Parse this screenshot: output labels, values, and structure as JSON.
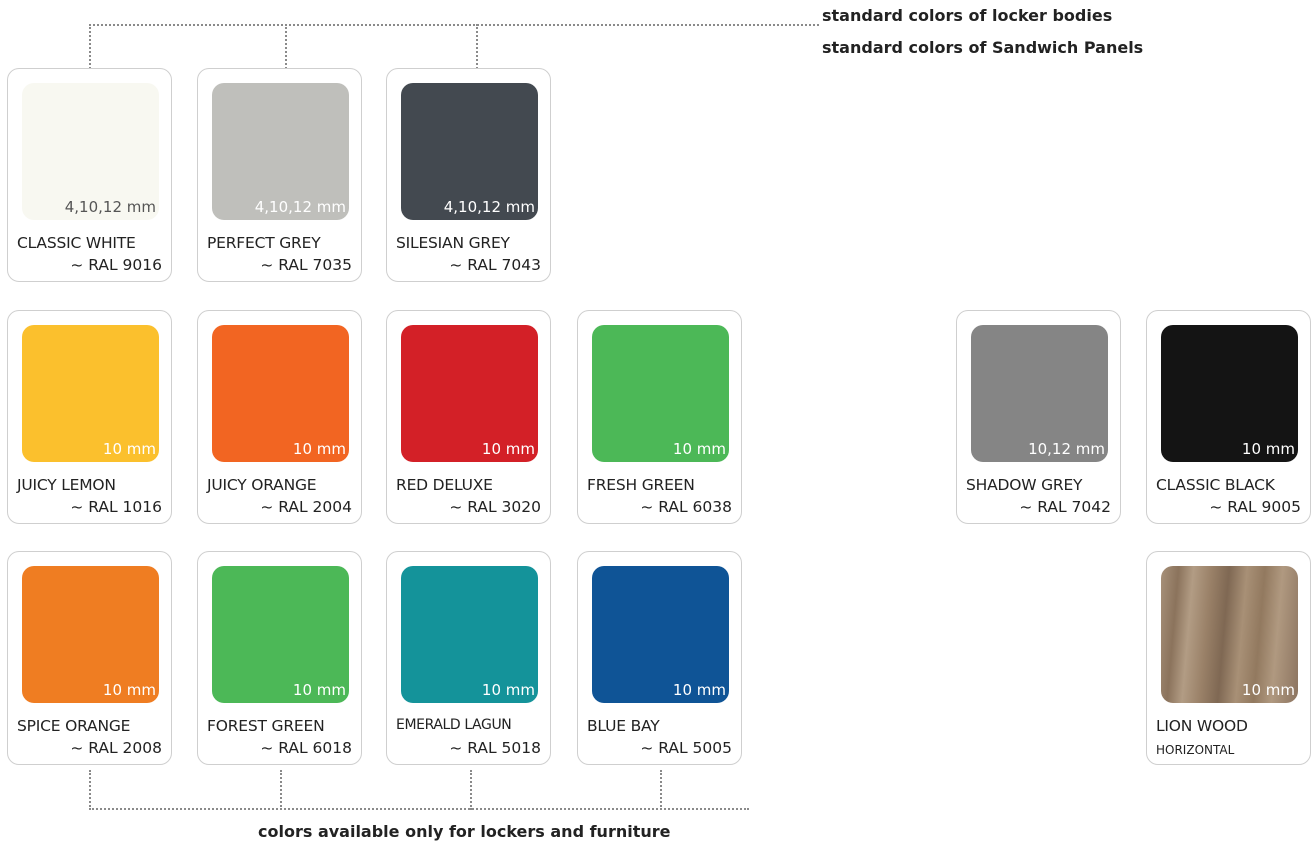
{
  "headings": {
    "top_1": "standard colors of locker bodies",
    "top_2": "standard colors of Sandwich Panels",
    "bottom": "colors available only for lockers and furniture"
  },
  "colors": [
    {
      "name": "CLASSIC WHITE",
      "code": "~ RAL 9016",
      "thickness": "4,10,12 mm",
      "swatch": "#f8f8f1"
    },
    {
      "name": "PERFECT GREY",
      "code": "~ RAL 7035",
      "thickness": "4,10,12 mm",
      "swatch": "#bfbfbb"
    },
    {
      "name": "SILESIAN GREY",
      "code": "~ RAL 7043",
      "thickness": "4,10,12 mm",
      "swatch": "#434950"
    },
    {
      "name": "JUICY LEMON",
      "code": "~ RAL 1016",
      "thickness": "10 mm",
      "swatch": "#fbc02d"
    },
    {
      "name": "JUICY ORANGE",
      "code": "~ RAL 2004",
      "thickness": "10 mm",
      "swatch": "#f26522"
    },
    {
      "name": "RED DELUXE",
      "code": "~ RAL 3020",
      "thickness": "10 mm",
      "swatch": "#d32027"
    },
    {
      "name": "FRESH GREEN",
      "code": "~ RAL 6038",
      "thickness": "10 mm",
      "swatch": "#4cb857"
    },
    {
      "name": "SHADOW GREY",
      "code": "~ RAL 7042",
      "thickness": "10,12 mm",
      "swatch": "#858585"
    },
    {
      "name": "CLASSIC BLACK",
      "code": "~ RAL 9005",
      "thickness": "10 mm",
      "swatch": "#141414"
    },
    {
      "name": "SPICE ORANGE",
      "code": "~ RAL 2008",
      "thickness": "10 mm",
      "swatch": "#ef7d22"
    },
    {
      "name": "FOREST GREEN",
      "code": "~ RAL 6018",
      "thickness": "10 mm",
      "swatch": "#4cb857"
    },
    {
      "name": "EMERALD LAGUN",
      "code": "~ RAL 5018",
      "thickness": "10 mm",
      "swatch": "#14939a"
    },
    {
      "name": "BLUE BAY",
      "code": "~ RAL 5005",
      "thickness": "10 mm",
      "swatch": "#0f5496"
    },
    {
      "name": "LION WOOD",
      "sub": "HORIZONTAL",
      "thickness": "10 mm",
      "swatch": "#a08a72"
    }
  ]
}
